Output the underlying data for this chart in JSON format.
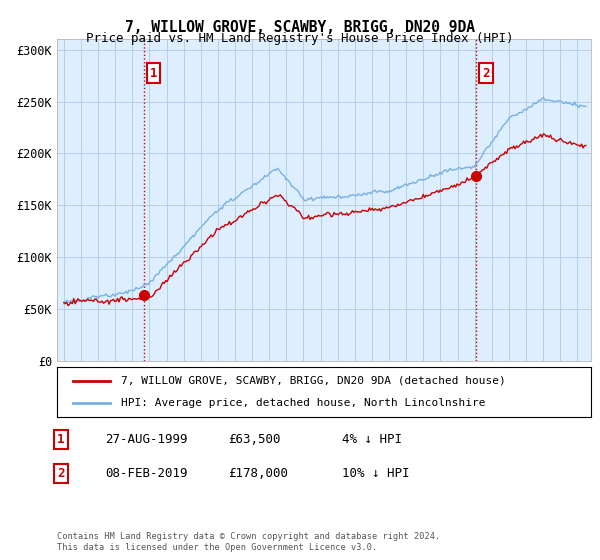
{
  "title": "7, WILLOW GROVE, SCAWBY, BRIGG, DN20 9DA",
  "subtitle": "Price paid vs. HM Land Registry's House Price Index (HPI)",
  "ylim": [
    0,
    310000
  ],
  "yticks": [
    0,
    50000,
    100000,
    150000,
    200000,
    250000,
    300000
  ],
  "ytick_labels": [
    "£0",
    "£50K",
    "£100K",
    "£150K",
    "£200K",
    "£250K",
    "£300K"
  ],
  "sale1_date": 1999.67,
  "sale1_price": 63500,
  "sale1_label": "1",
  "sale1_info": "27-AUG-1999",
  "sale1_amount": "£63,500",
  "sale1_pct": "4% ↓ HPI",
  "sale2_date": 2019.08,
  "sale2_price": 178000,
  "sale2_label": "2",
  "sale2_info": "08-FEB-2019",
  "sale2_amount": "£178,000",
  "sale2_pct": "10% ↓ HPI",
  "hpi_color": "#7ab0e0",
  "price_color": "#cc0000",
  "vline_color": "#cc0000",
  "chart_bg": "#ddeeff",
  "background_color": "#ffffff",
  "legend_label_price": "7, WILLOW GROVE, SCAWBY, BRIGG, DN20 9DA (detached house)",
  "legend_label_hpi": "HPI: Average price, detached house, North Lincolnshire",
  "footer": "Contains HM Land Registry data © Crown copyright and database right 2024.\nThis data is licensed under the Open Government Licence v3.0."
}
